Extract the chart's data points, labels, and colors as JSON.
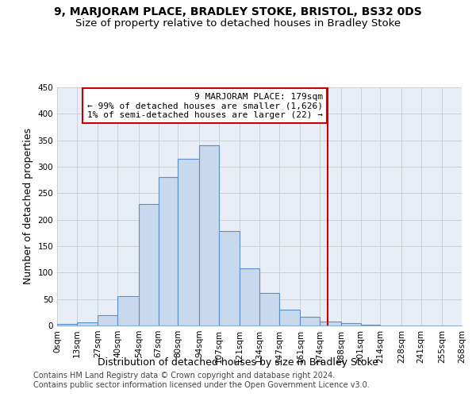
{
  "title": "9, MARJORAM PLACE, BRADLEY STOKE, BRISTOL, BS32 0DS",
  "subtitle": "Size of property relative to detached houses in Bradley Stoke",
  "xlabel": "Distribution of detached houses by size in Bradley Stoke",
  "ylabel": "Number of detached properties",
  "footer1": "Contains HM Land Registry data © Crown copyright and database right 2024.",
  "footer2": "Contains public sector information licensed under the Open Government Licence v3.0.",
  "bin_edges": [
    0,
    13,
    27,
    40,
    54,
    67,
    80,
    94,
    107,
    121,
    134,
    147,
    161,
    174,
    188,
    201,
    214,
    228,
    241,
    255,
    268
  ],
  "bar_heights": [
    3,
    6,
    20,
    55,
    230,
    280,
    315,
    340,
    178,
    108,
    62,
    30,
    17,
    7,
    5,
    2,
    0,
    0,
    0,
    0
  ],
  "bar_facecolor": "#c9d9ed",
  "bar_edgecolor": "#5b8dc8",
  "grid_color": "#cccccc",
  "background_color": "#e8eef6",
  "vline_x": 179,
  "vline_color": "#cc0000",
  "annotation_line1": "9 MARJORAM PLACE: 179sqm",
  "annotation_line2": "← 99% of detached houses are smaller (1,626)",
  "annotation_line3": "1% of semi-detached houses are larger (22) →",
  "annotation_box_color": "#cc0000",
  "annotation_facecolor": "white",
  "ylim": [
    0,
    450
  ],
  "yticks": [
    0,
    50,
    100,
    150,
    200,
    250,
    300,
    350,
    400,
    450
  ],
  "title_fontsize": 10,
  "subtitle_fontsize": 9.5,
  "label_fontsize": 9,
  "tick_fontsize": 7.5,
  "annotation_fontsize": 8,
  "footer_fontsize": 7
}
